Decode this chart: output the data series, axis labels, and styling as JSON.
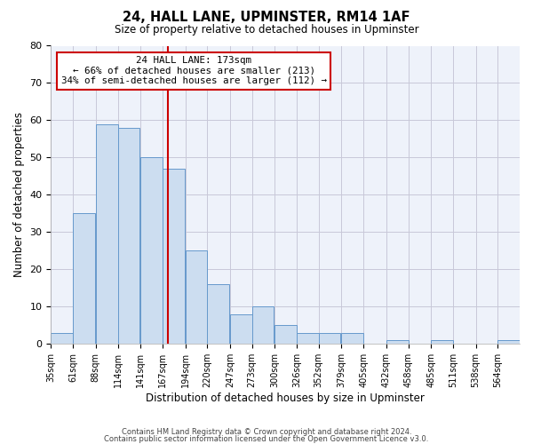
{
  "title": "24, HALL LANE, UPMINSTER, RM14 1AF",
  "subtitle": "Size of property relative to detached houses in Upminster",
  "xlabel": "Distribution of detached houses by size in Upminster",
  "ylabel": "Number of detached properties",
  "bin_edges": [
    35,
    61,
    88,
    114,
    141,
    167,
    194,
    220,
    247,
    273,
    300,
    326,
    352,
    379,
    405,
    432,
    458,
    485,
    511,
    538,
    564,
    590
  ],
  "bin_labels": [
    "35sqm",
    "61sqm",
    "88sqm",
    "114sqm",
    "141sqm",
    "167sqm",
    "194sqm",
    "220sqm",
    "247sqm",
    "273sqm",
    "300sqm",
    "326sqm",
    "352sqm",
    "379sqm",
    "405sqm",
    "432sqm",
    "458sqm",
    "485sqm",
    "511sqm",
    "538sqm",
    "564sqm"
  ],
  "counts": [
    3,
    35,
    59,
    58,
    50,
    47,
    25,
    16,
    8,
    10,
    5,
    3,
    3,
    3,
    0,
    1,
    0,
    1,
    0,
    0,
    1
  ],
  "property_size": 173,
  "bar_facecolor": "#ccddf0",
  "bar_edgecolor": "#6699cc",
  "vline_color": "#cc0000",
  "annotation_line1": "24 HALL LANE: 173sqm",
  "annotation_line2": "← 66% of detached houses are smaller (213)",
  "annotation_line3": "34% of semi-detached houses are larger (112) →",
  "annotation_box_edgecolor": "#cc0000",
  "ylim": [
    0,
    80
  ],
  "yticks": [
    0,
    10,
    20,
    30,
    40,
    50,
    60,
    70,
    80
  ],
  "grid_color": "#c8c8d8",
  "background_color": "#eef2fa",
  "footer_line1": "Contains HM Land Registry data © Crown copyright and database right 2024.",
  "footer_line2": "Contains public sector information licensed under the Open Government Licence v3.0."
}
